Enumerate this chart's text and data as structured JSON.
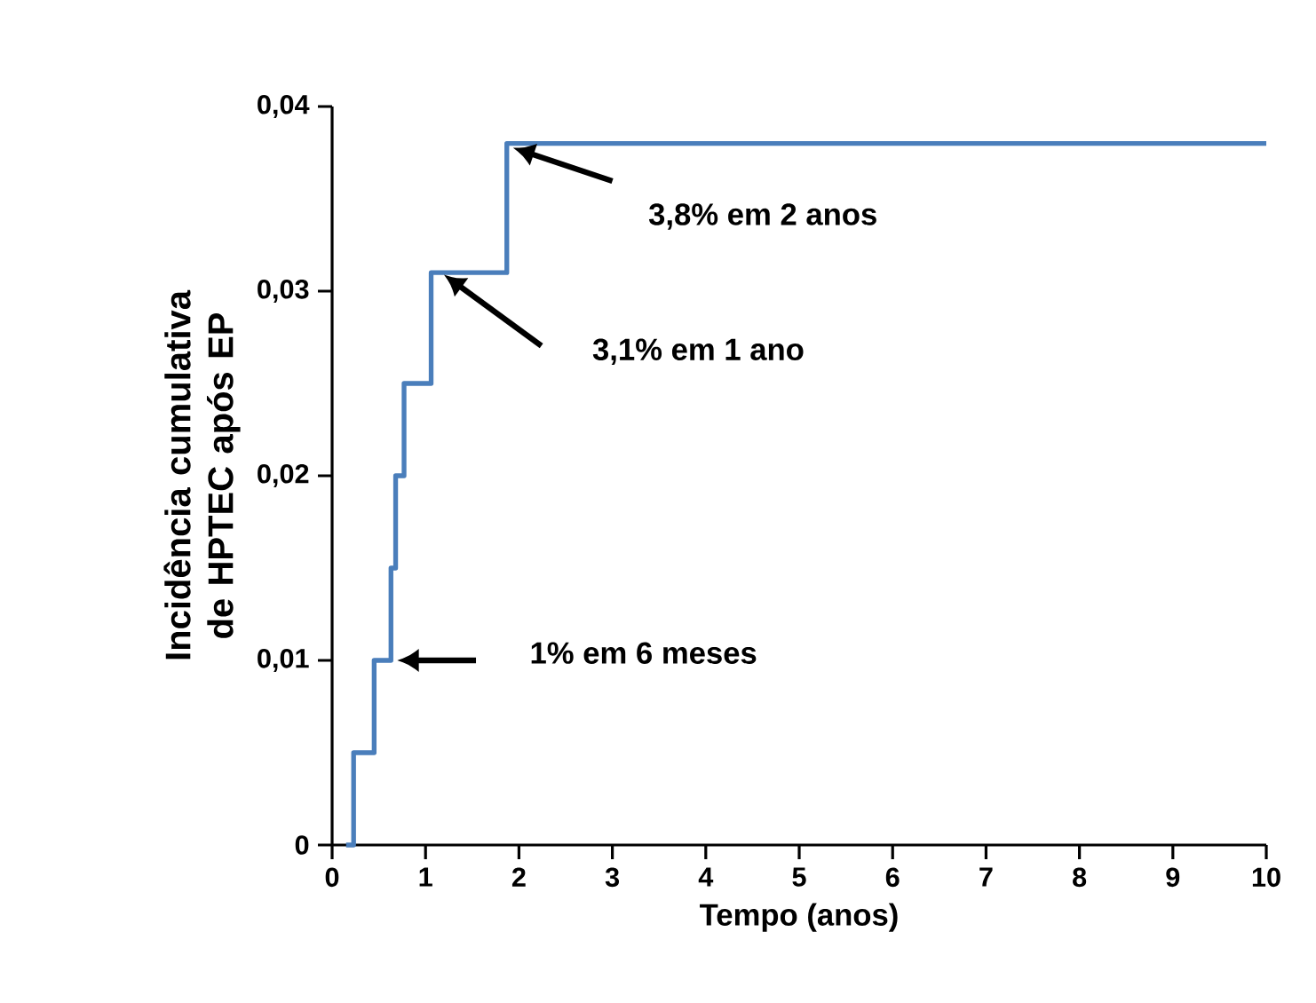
{
  "chart_data": {
    "type": "step",
    "xlabel": "Tempo (anos)",
    "ylabel": "Incidência cumulativa de HPTEC após EP",
    "xlim": [
      0,
      10
    ],
    "ylim": [
      0,
      0.04
    ],
    "xticks": [
      0,
      1,
      2,
      3,
      4,
      5,
      6,
      7,
      8,
      9,
      10
    ],
    "yticks": [
      0,
      {
        "value": 0.01,
        "label": "0,01"
      },
      {
        "value": 0.02,
        "label": "0,02"
      },
      {
        "value": 0.03,
        "label": "0,03"
      },
      {
        "value": 0.04,
        "label": "0,04"
      }
    ],
    "grid": false,
    "x": [
      0.15,
      0.23,
      0.45,
      0.63,
      0.68,
      0.77,
      1.06,
      1.87,
      10
    ],
    "series": [
      {
        "color": "#4a7ebb",
        "values": [
          0,
          0.005,
          0.01,
          0.015,
          0.02,
          0.025,
          0.031,
          0.038,
          0.038
        ]
      }
    ],
    "annotations": [
      "3,8% em 2 anos",
      "3,1% em 1 ano",
      "1% em 6 meses"
    ]
  }
}
